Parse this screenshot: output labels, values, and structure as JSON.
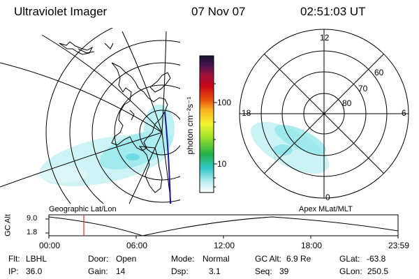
{
  "header": {
    "title": "Ultraviolet Imager",
    "date": "07 Nov 07",
    "time": "02:51:03 UT"
  },
  "maps": {
    "left_label": "Geographic Lat/Lon",
    "right_label": "Apex MLat/MLT",
    "polar_mlt_labels": {
      "top": "12",
      "bottom": "0",
      "left": "18",
      "right": "6"
    },
    "polar_lat_labels": [
      "60",
      "70",
      "80"
    ]
  },
  "colorbar": {
    "unit_label": "photon cm⁻²s⁻¹",
    "tick_100": "100",
    "tick_10": "10"
  },
  "altitude_plot": {
    "ylabel": "GC Alt",
    "ytick_top": "9.0",
    "ytick_bottom": "1.8",
    "xticks": [
      "00:00",
      "06:00",
      "12:00",
      "18:00",
      "23:59"
    ],
    "marker_color": "#e03030"
  },
  "status": {
    "flt_label": "Flt:",
    "flt_value": "LBHL",
    "door_label": "Door:",
    "door_value": "Open",
    "mode_label": "Mode:",
    "mode_value": "Normal",
    "gcalt_label": "GC Alt:",
    "gcalt_value": "6.9 Re",
    "glat_label": "GLat:",
    "glat_value": "-63.8",
    "ip_label": "IP:",
    "ip_value": "36.0",
    "gain_label": "Gain:",
    "gain_value": "14",
    "dsp_label": "Dsp:",
    "dsp_value": "3.1",
    "seq_label": "Seq:",
    "seq_value": "39",
    "glon_label": "GLon:",
    "glon_value": "250.5"
  },
  "colors": {
    "aurora": "#7fe3e8",
    "aurora_light": "#c9f2f3",
    "grid": "#000000",
    "orbit_line": "#1a1aa0"
  }
}
